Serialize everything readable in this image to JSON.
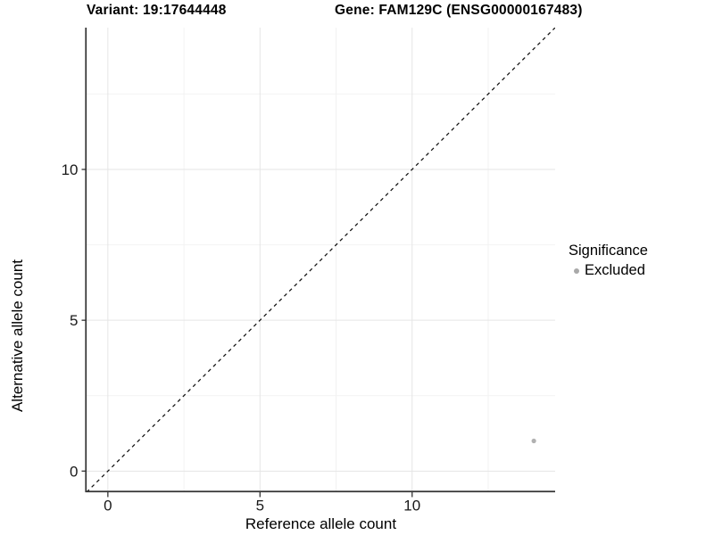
{
  "titles": {
    "variant": "Variant: 19:17644448",
    "gene": "Gene: FAM129C (ENSG00000167483)"
  },
  "legend": {
    "title": "Significance",
    "items": [
      {
        "label": "Excluded",
        "color": "#a9a9a9"
      }
    ]
  },
  "chart_data": {
    "type": "scatter",
    "title": "Variant: 19:17644448  /  Gene: FAM129C (ENSG00000167483)",
    "xlabel": "Reference allele count",
    "ylabel": "Alternative allele count",
    "xlim": [
      -0.7,
      14.7
    ],
    "ylim": [
      -0.7,
      14.7
    ],
    "x_ticks": [
      0,
      5,
      10
    ],
    "y_ticks": [
      0,
      5,
      10
    ],
    "x_minor_ticks": [
      2.5,
      7.5,
      12.5
    ],
    "y_minor_ticks": [
      2.5,
      7.5,
      12.5
    ],
    "grid": true,
    "legend_position": "right",
    "series": [
      {
        "name": "Excluded",
        "color": "#b1b1b1",
        "points": [
          {
            "x": 14,
            "y": 1
          }
        ]
      }
    ],
    "reference_line": {
      "type": "identity",
      "style": "dashed",
      "color": "#111111"
    }
  },
  "style_colors": {
    "background": "#ffffff",
    "axis_line": "#333333",
    "tick": "#333333",
    "tick_label": "#1a1a1a",
    "grid_major": "#e5e5e5",
    "grid_minor": "#f2f2f2"
  }
}
